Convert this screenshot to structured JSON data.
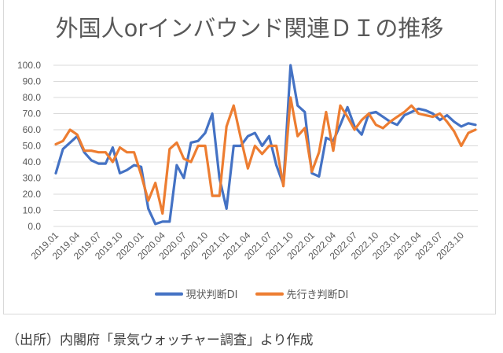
{
  "chart_data": {
    "type": "line",
    "title": "外国人orインバウンド関連ＤＩの推移",
    "xlabel": "",
    "ylabel": "",
    "ylim": [
      0,
      100
    ],
    "yticks": [
      "0.0",
      "10.0",
      "20.0",
      "30.0",
      "40.0",
      "50.0",
      "60.0",
      "70.0",
      "80.0",
      "90.0",
      "100.0"
    ],
    "grid": true,
    "legend_position": "bottom",
    "x": [
      "2019.01",
      "2019.02",
      "2019.03",
      "2019.04",
      "2019.05",
      "2019.06",
      "2019.07",
      "2019.08",
      "2019.09",
      "2019.10",
      "2019.11",
      "2019.12",
      "2020.01",
      "2020.02",
      "2020.03",
      "2020.04",
      "2020.05",
      "2020.06",
      "2020.07",
      "2020.08",
      "2020.09",
      "2020.10",
      "2020.11",
      "2020.12",
      "2021.01",
      "2021.02",
      "2021.03",
      "2021.04",
      "2021.05",
      "2021.06",
      "2021.07",
      "2021.08",
      "2021.09",
      "2021.10",
      "2021.11",
      "2021.12",
      "2022.01",
      "2022.02",
      "2022.03",
      "2022.04",
      "2022.05",
      "2022.06",
      "2022.07",
      "2022.08",
      "2022.09",
      "2022.10",
      "2022.11",
      "2022.12",
      "2023.01",
      "2023.02",
      "2023.03",
      "2023.04",
      "2023.05",
      "2023.06",
      "2023.07",
      "2023.08",
      "2023.09",
      "2023.10",
      "2023.11",
      "2023.12"
    ],
    "xtick_labels": [
      "2019.01",
      "2019.04",
      "2019.07",
      "2019.10",
      "2020.01",
      "2020.04",
      "2020.07",
      "2020.10",
      "2021.01",
      "2021.04",
      "2021.07",
      "2021.10",
      "2022.01",
      "2022.04",
      "2022.07",
      "2022.10",
      "2023.01",
      "2023.04",
      "2023.07",
      "2023.10"
    ],
    "series": [
      {
        "name": "現状判断DI",
        "color": "#4472c4",
        "values": [
          33,
          48,
          52,
          56,
          46,
          41,
          39,
          39,
          49,
          33,
          35,
          38,
          37,
          11,
          1.5,
          3,
          3,
          38,
          30,
          52,
          53,
          58,
          70,
          30,
          11,
          50,
          50,
          56,
          58,
          50,
          56,
          38,
          26,
          100,
          75,
          71,
          33,
          31,
          55,
          53,
          63,
          74,
          62,
          57,
          70,
          71,
          68,
          65,
          63,
          69,
          71,
          73,
          72,
          70,
          66,
          69,
          65,
          62,
          64,
          63
        ]
      },
      {
        "name": "先行き判断DI",
        "color": "#ed7d31",
        "values": [
          51,
          53,
          60,
          57,
          47,
          47,
          46,
          46,
          40,
          49,
          46,
          46,
          32,
          16,
          27,
          8,
          48,
          52,
          42,
          40,
          50,
          50,
          19,
          19,
          62,
          75,
          55,
          36,
          50,
          45,
          50,
          50,
          25,
          80,
          56,
          61,
          34,
          46,
          71,
          47,
          75,
          68,
          60,
          66,
          70,
          63,
          61,
          65,
          68,
          71,
          75,
          70,
          69,
          68,
          70,
          65,
          59,
          50,
          58,
          60
        ]
      }
    ]
  },
  "legend": {
    "items": [
      {
        "label": "現状判断DI",
        "color": "#4472c4"
      },
      {
        "label": "先行き判断DI",
        "color": "#ed7d31"
      }
    ]
  },
  "source_note": "（出所）内閣府「景気ウォッチャー調査」より作成"
}
